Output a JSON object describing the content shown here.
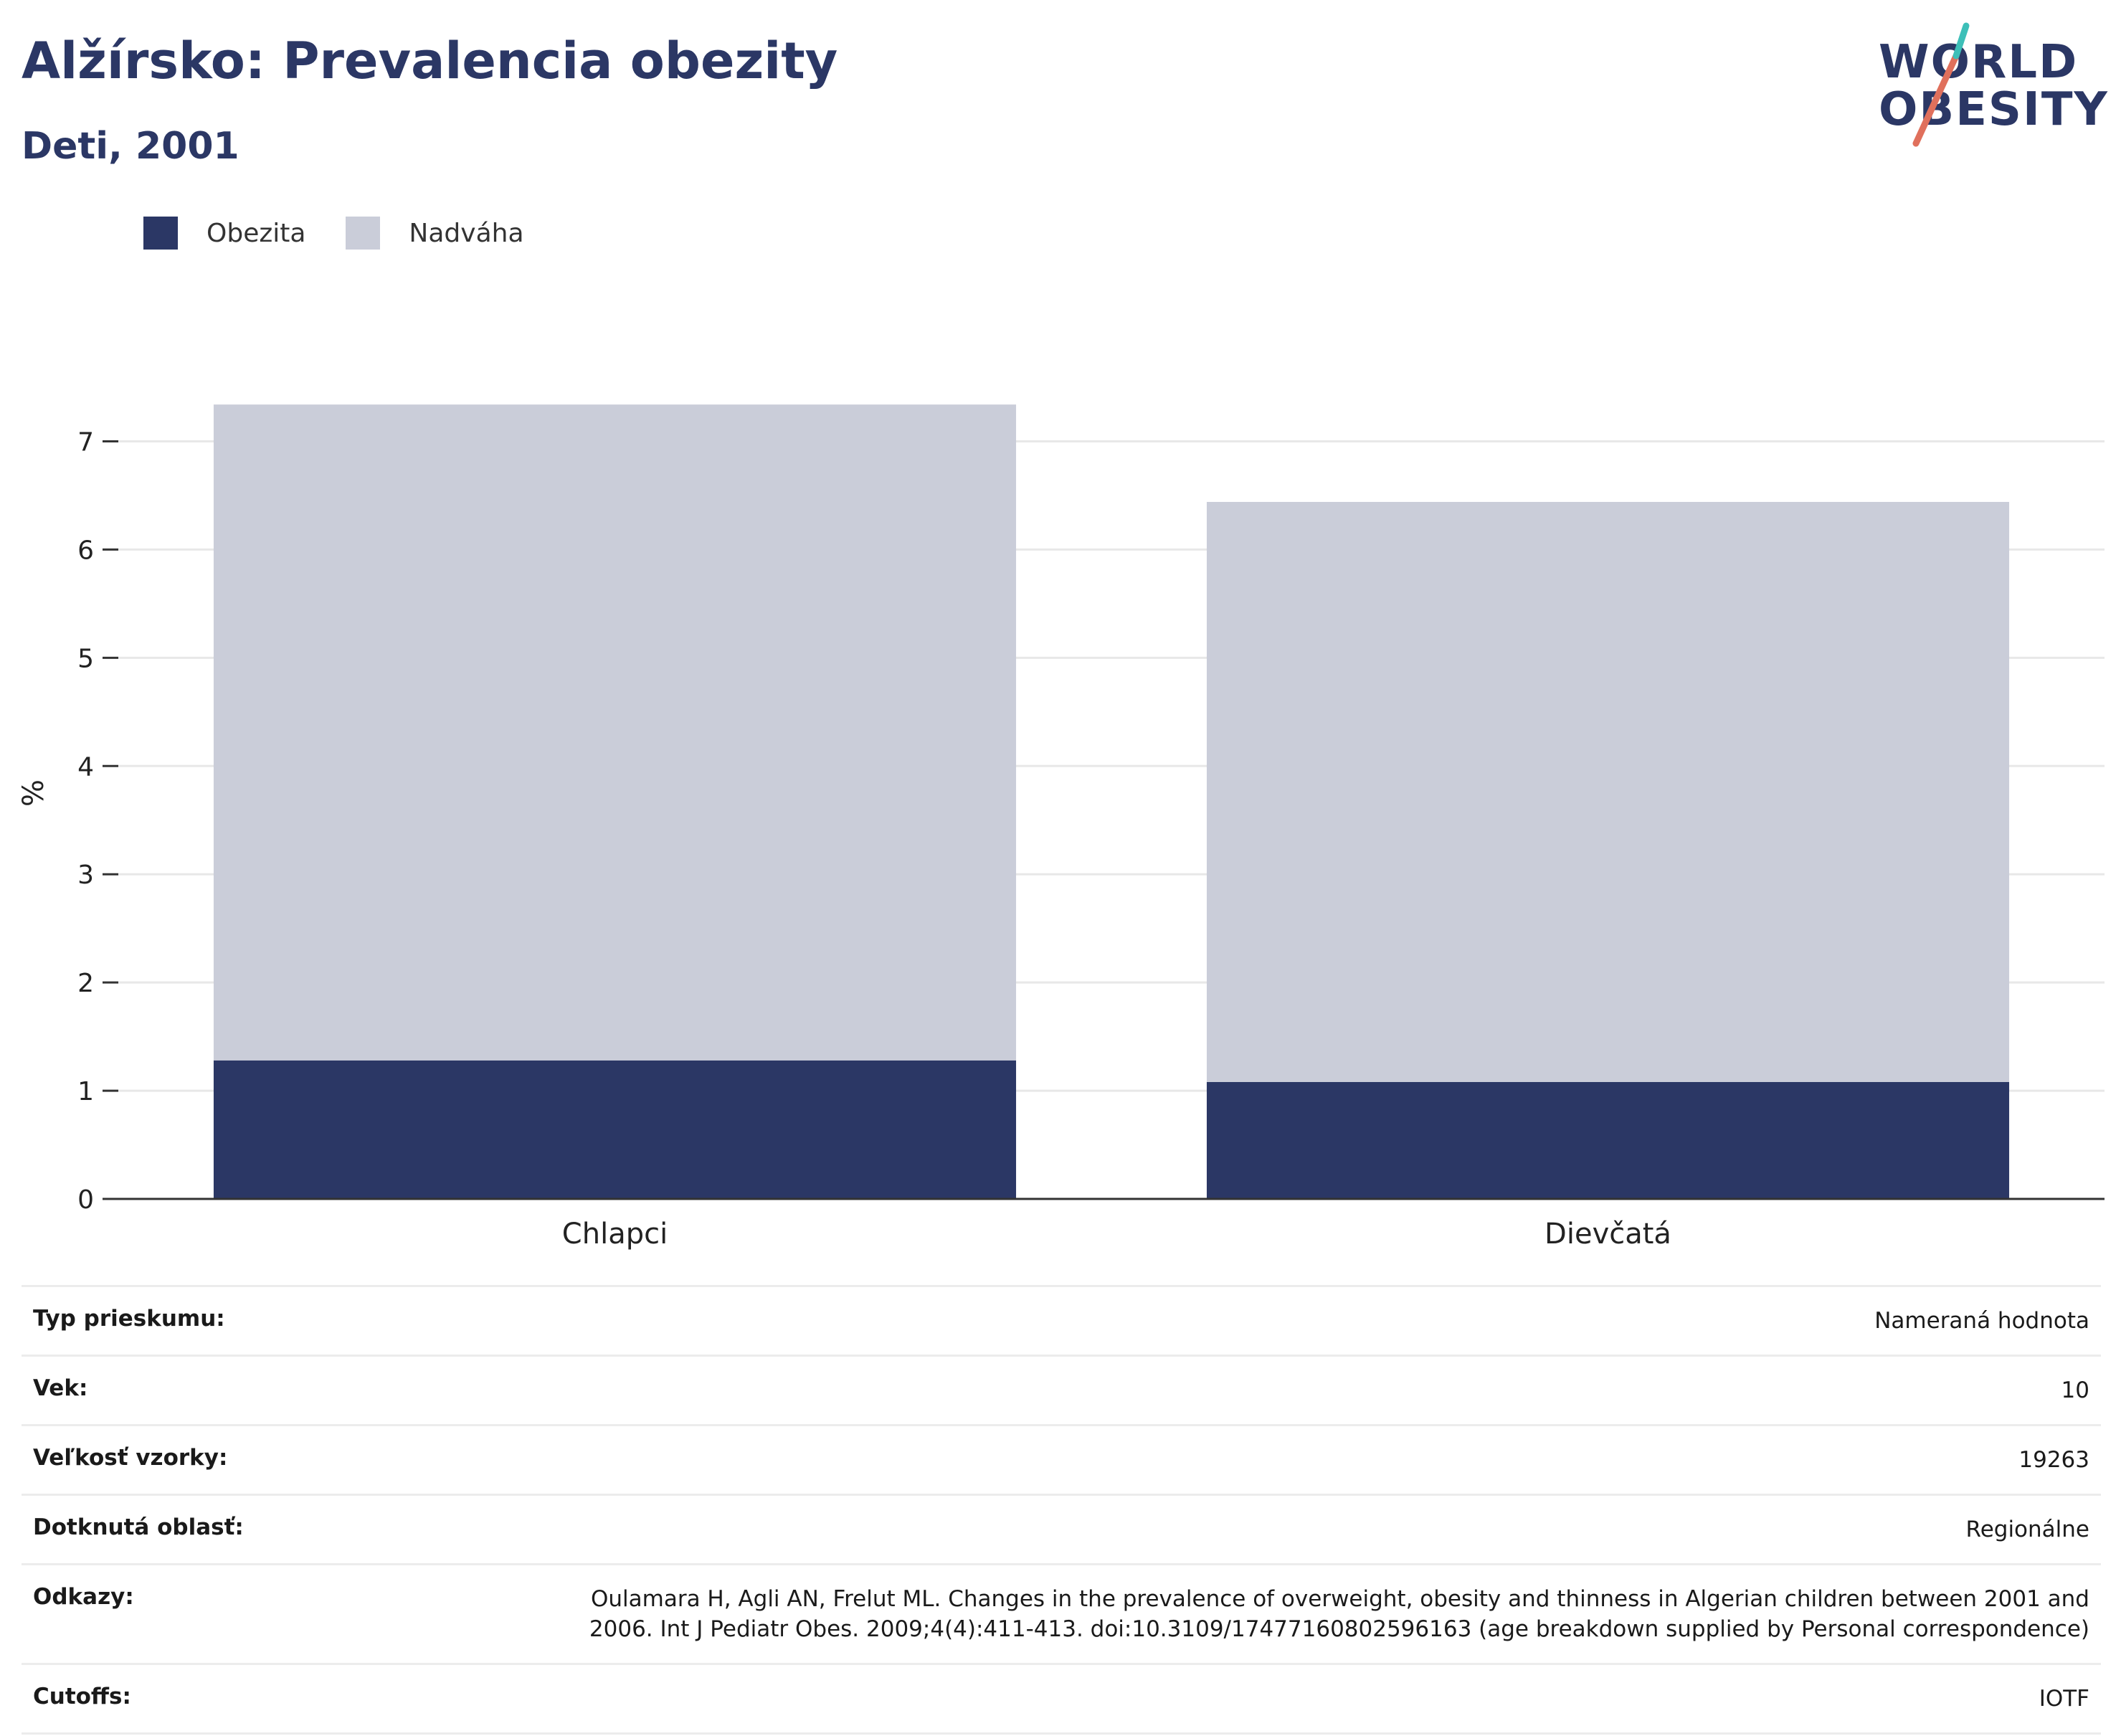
{
  "header": {
    "title": "Alžírsko: Prevalencia obezity",
    "subtitle": "Deti, 2001",
    "logo_line1": "WORLD",
    "logo_line2": "OBESITY"
  },
  "legend": [
    {
      "label": "Obezita",
      "color": "#2b3765"
    },
    {
      "label": "Nadváha",
      "color": "#cacdd9"
    }
  ],
  "chart_data": {
    "type": "bar",
    "stacked": true,
    "categories": [
      "Chlapci",
      "Dievčatá"
    ],
    "series": [
      {
        "name": "Obezita",
        "values": [
          1.28,
          1.08
        ],
        "color": "#2b3765"
      },
      {
        "name": "Nadváha",
        "values": [
          6.06,
          5.36
        ],
        "color": "#cacdd9"
      }
    ],
    "ylabel": "%",
    "ylim": [
      0,
      7.5
    ],
    "yticks": [
      0,
      1,
      2,
      3,
      4,
      5,
      6,
      7
    ],
    "grid": true,
    "legend_position": "top-left"
  },
  "info": [
    {
      "key": "Typ prieskumu:",
      "value": "Nameraná hodnota"
    },
    {
      "key": "Vek:",
      "value": "10"
    },
    {
      "key": "Veľkosť vzorky:",
      "value": "19263"
    },
    {
      "key": "Dotknutá oblasť:",
      "value": "Regionálne"
    },
    {
      "key": "Odkazy:",
      "value": "Oulamara H, Agli AN, Frelut ML. Changes in the prevalence of overweight, obesity and thinness in Algerian children between 2001 and 2006. Int J Pediatr Obes. 2009;4(4):411-413. doi:10.3109/17477160802596163 (age breakdown supplied by Personal correspondence)"
    },
    {
      "key": "Cutoffs:",
      "value": "IOTF"
    }
  ]
}
